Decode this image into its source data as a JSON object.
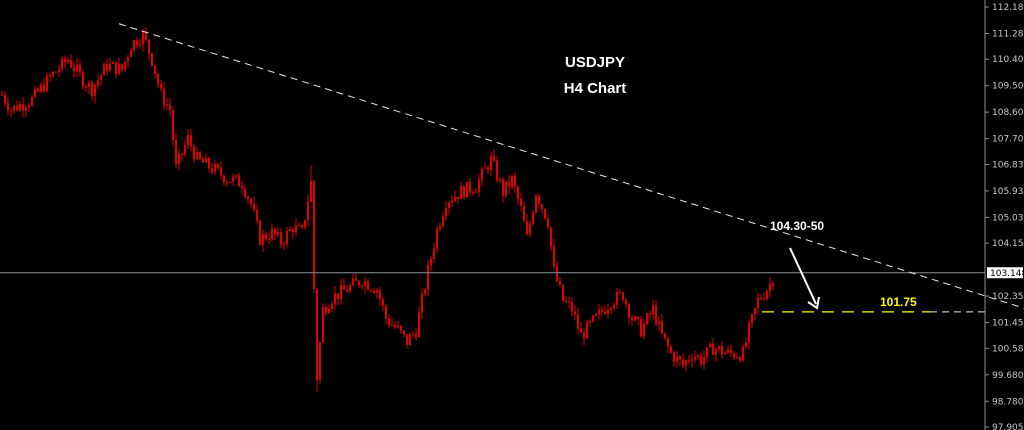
{
  "chart_data": {
    "type": "candlestick",
    "title": "USDJPY",
    "subtitle": "H4 Chart",
    "symbol": "USDJPY",
    "timeframe": "H4",
    "ylim": [
      97.905,
      112.18
    ],
    "y_ticks": [
      "112.180",
      "111.280",
      "110.405",
      "109.505",
      "108.605",
      "107.705",
      "106.830",
      "105.930",
      "105.030",
      "104.155",
      "102.355",
      "101.455",
      "100.580",
      "99.680",
      "98.780",
      "97.905"
    ],
    "current_price": "103.148",
    "grid": false,
    "candle_color": "#e00000",
    "price_path": [
      {
        "bar": 0,
        "price": 109.2
      },
      {
        "bar": 3,
        "price": 108.7
      },
      {
        "bar": 10,
        "price": 109.04
      },
      {
        "bar": 17,
        "price": 109.9
      },
      {
        "bar": 22,
        "price": 110.4
      },
      {
        "bar": 27,
        "price": 109.7
      },
      {
        "bar": 30,
        "price": 109.4
      },
      {
        "bar": 35,
        "price": 110.2
      },
      {
        "bar": 40,
        "price": 110.05
      },
      {
        "bar": 43,
        "price": 110.9
      },
      {
        "bar": 47,
        "price": 111.23
      },
      {
        "bar": 50,
        "price": 110.4
      },
      {
        "bar": 53,
        "price": 109.2
      },
      {
        "bar": 56,
        "price": 108.7
      },
      {
        "bar": 58,
        "price": 106.7
      },
      {
        "bar": 62,
        "price": 107.7
      },
      {
        "bar": 65,
        "price": 107.0
      },
      {
        "bar": 70,
        "price": 106.7
      },
      {
        "bar": 75,
        "price": 106.35
      },
      {
        "bar": 80,
        "price": 106.2
      },
      {
        "bar": 83,
        "price": 105.5
      },
      {
        "bar": 86,
        "price": 104.3
      },
      {
        "bar": 90,
        "price": 104.5
      },
      {
        "bar": 93,
        "price": 104.2
      },
      {
        "bar": 97,
        "price": 104.7
      },
      {
        "bar": 100,
        "price": 104.5
      },
      {
        "bar": 103,
        "price": 106.2
      },
      {
        "bar": 104,
        "price": 102.6
      },
      {
        "bar": 105,
        "price": 99.6,
        "low": 99.1
      },
      {
        "bar": 107,
        "price": 101.9
      },
      {
        "bar": 110,
        "price": 102.3
      },
      {
        "bar": 115,
        "price": 102.6
      },
      {
        "bar": 120,
        "price": 102.9
      },
      {
        "bar": 125,
        "price": 102.6
      },
      {
        "bar": 128,
        "price": 101.6
      },
      {
        "bar": 132,
        "price": 101.2
      },
      {
        "bar": 135,
        "price": 100.8
      },
      {
        "bar": 138,
        "price": 101.2
      },
      {
        "bar": 142,
        "price": 103.2
      },
      {
        "bar": 145,
        "price": 104.6
      },
      {
        "bar": 148,
        "price": 105.6
      },
      {
        "bar": 153,
        "price": 105.9
      },
      {
        "bar": 158,
        "price": 106.1
      },
      {
        "bar": 163,
        "price": 107.0
      },
      {
        "bar": 167,
        "price": 105.9
      },
      {
        "bar": 170,
        "price": 106.3
      },
      {
        "bar": 173,
        "price": 105.3
      },
      {
        "bar": 175,
        "price": 104.3
      },
      {
        "bar": 178,
        "price": 105.9
      },
      {
        "bar": 182,
        "price": 104.9
      },
      {
        "bar": 184,
        "price": 103.2
      },
      {
        "bar": 187,
        "price": 102.2
      },
      {
        "bar": 190,
        "price": 101.9
      },
      {
        "bar": 193,
        "price": 101.0
      },
      {
        "bar": 198,
        "price": 101.6
      },
      {
        "bar": 203,
        "price": 102.2
      },
      {
        "bar": 207,
        "price": 102.4
      },
      {
        "bar": 210,
        "price": 101.6
      },
      {
        "bar": 213,
        "price": 101.2
      },
      {
        "bar": 217,
        "price": 101.9
      },
      {
        "bar": 220,
        "price": 101.0
      },
      {
        "bar": 223,
        "price": 100.4
      },
      {
        "bar": 227,
        "price": 100.0
      },
      {
        "bar": 230,
        "price": 100.4
      },
      {
        "bar": 233,
        "price": 100.2
      },
      {
        "bar": 237,
        "price": 100.6
      },
      {
        "bar": 242,
        "price": 100.4
      },
      {
        "bar": 247,
        "price": 100.4
      },
      {
        "bar": 249,
        "price": 101.2
      },
      {
        "bar": 252,
        "price": 102.2
      },
      {
        "bar": 255,
        "price": 102.6
      },
      {
        "bar": 258,
        "price": 103.1
      }
    ],
    "trendline": {
      "start": {
        "bar": 39,
        "price": 111.61
      },
      "end": {
        "bar": 328,
        "price": 102.35
      },
      "style": "dashed",
      "color": "#ffffff"
    },
    "support_line": {
      "price": 101.75,
      "color": "#ffff00",
      "style": "dashed"
    },
    "annotations": {
      "resistance_label": "104.30-50",
      "target_label": "101.75"
    }
  }
}
